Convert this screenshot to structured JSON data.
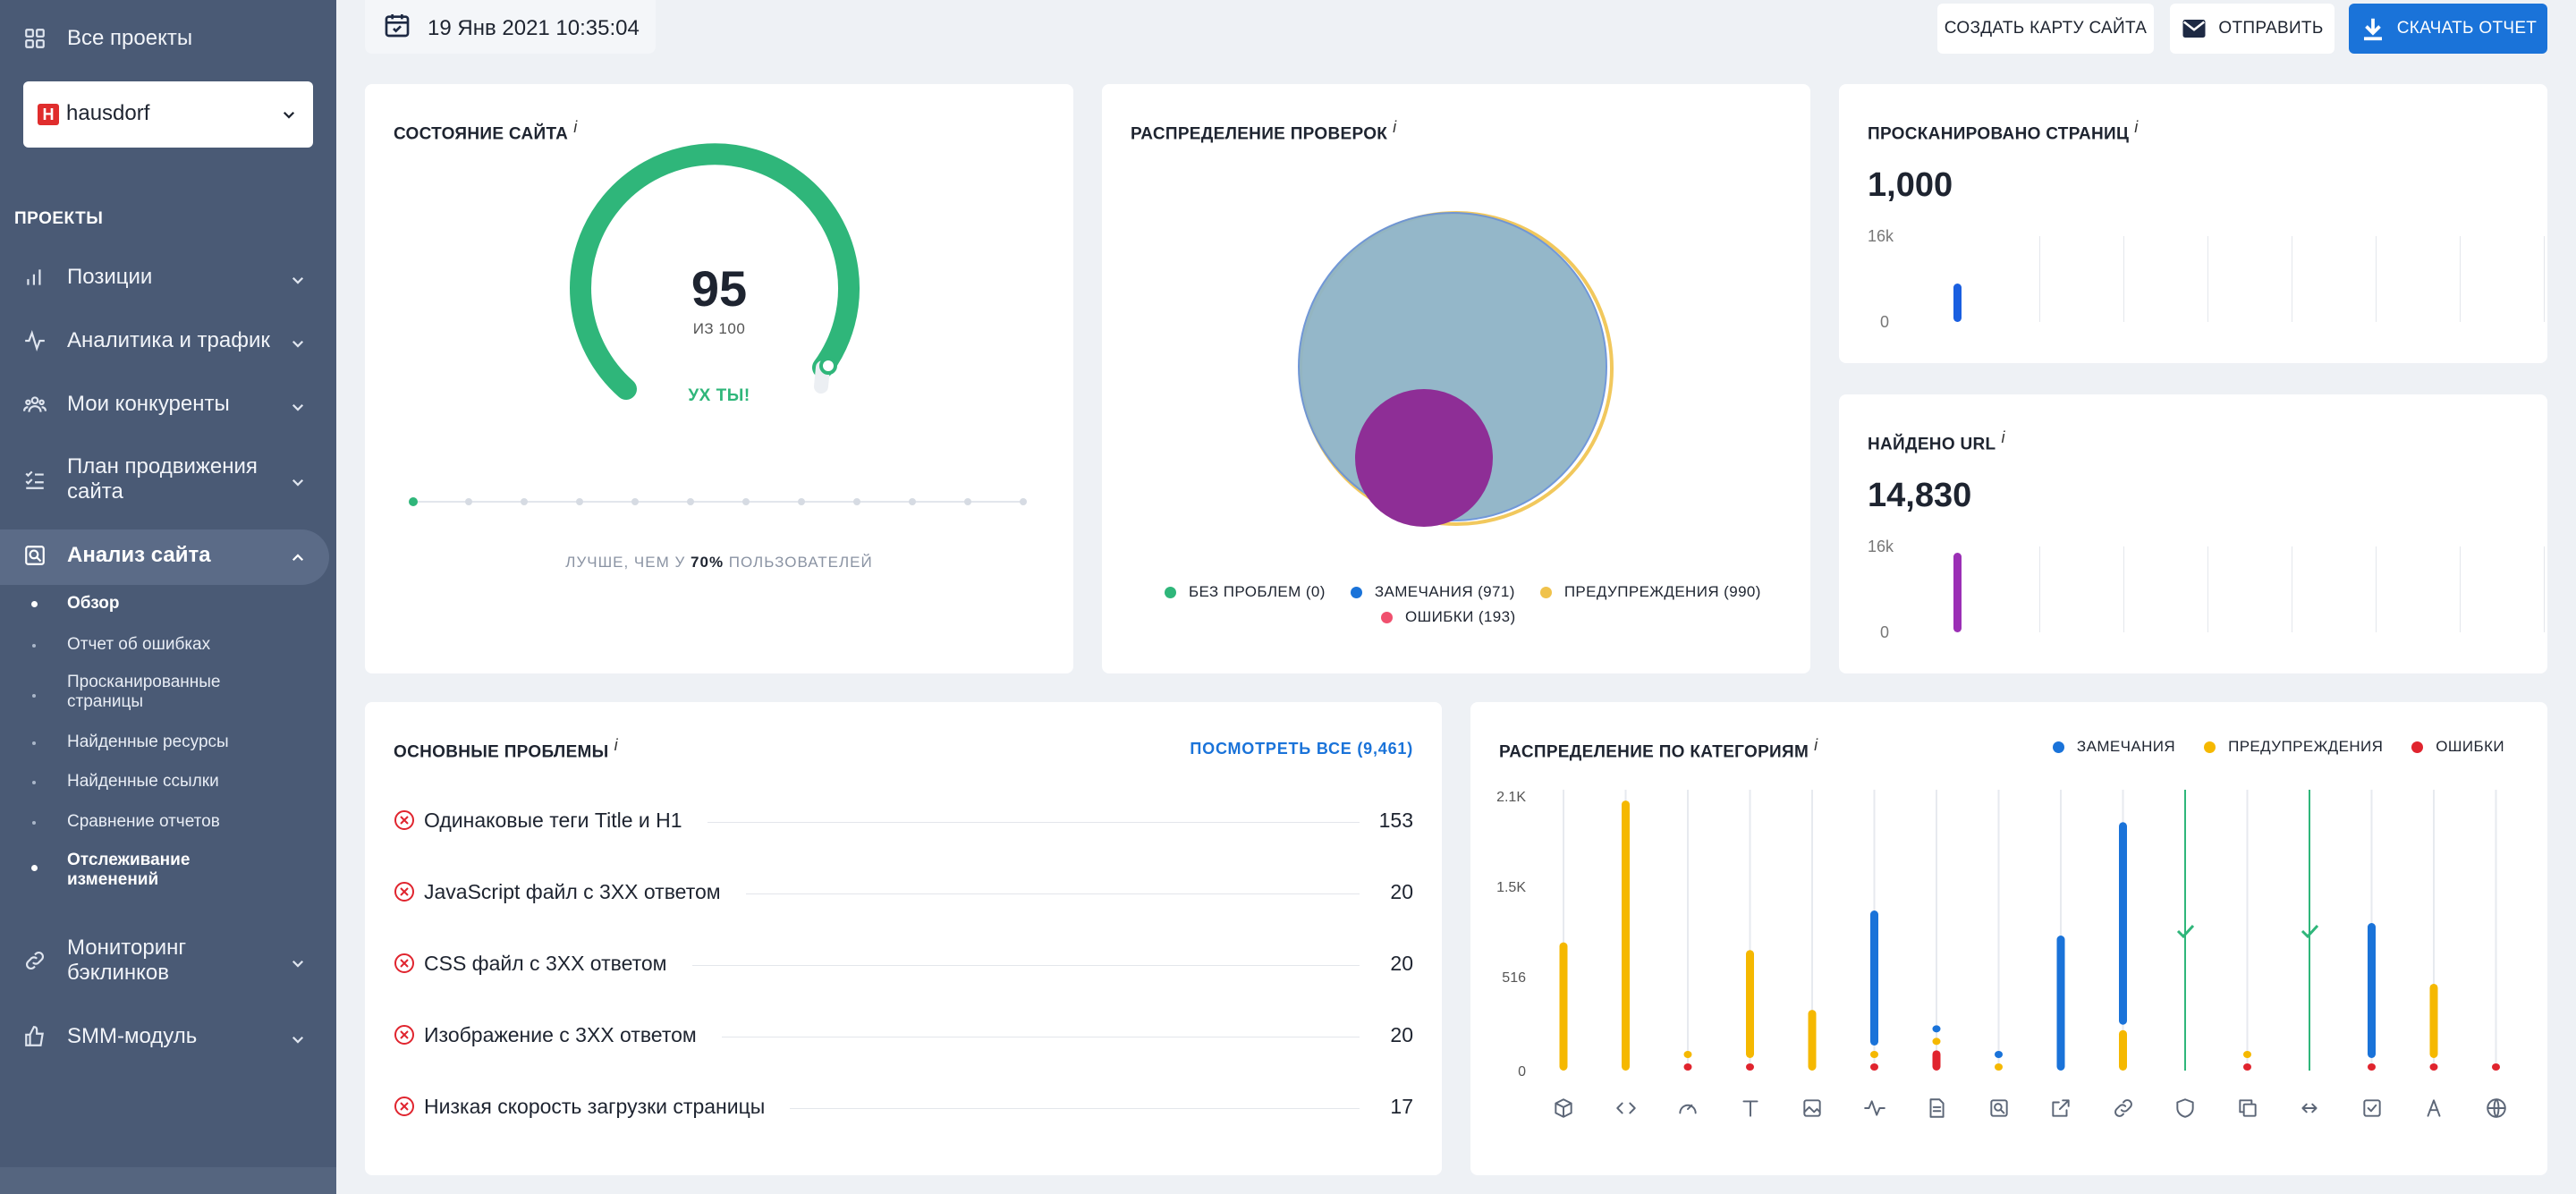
{
  "sidebar": {
    "all_projects": "Все проекты",
    "project": "hausdorf",
    "section_title": "ПРОЕКТЫ",
    "items": [
      {
        "label": "Позиции"
      },
      {
        "label": "Аналитика и трафик"
      },
      {
        "label": "Мои конкуренты"
      },
      {
        "label": "План продвижения сайта"
      },
      {
        "label": "Анализ сайта"
      },
      {
        "label": "Мониторинг бэклинков"
      },
      {
        "label": "SMM-модуль"
      }
    ],
    "subitems": [
      {
        "label": "Обзор"
      },
      {
        "label": "Отчет об ошибках"
      },
      {
        "label": "Просканированные страницы"
      },
      {
        "label": "Найденные ресурсы"
      },
      {
        "label": "Найденные ссылки"
      },
      {
        "label": "Сравнение отчетов"
      },
      {
        "label": "Отслеживание изменений"
      }
    ]
  },
  "header": {
    "date": "19 Янв 2021 10:35:04",
    "btn_sitemap": "СОЗДАТЬ КАРТУ САЙТА",
    "btn_send": "ОТПРАВИТЬ",
    "btn_download": "СКАЧАТЬ ОТЧЕТ"
  },
  "site_health": {
    "title": "СОСТОЯНИЕ САЙТА",
    "info": "i",
    "score": "95",
    "of": "ИЗ 100",
    "verdict": "УХ ТЫ!",
    "score_fraction": 0.95,
    "better_prefix": "ЛУЧШЕ, ЧЕМ У",
    "better_percent": "70%",
    "better_suffix": "ПОЛЬЗОВАТЕЛЕЙ"
  },
  "checks": {
    "title": "РАСПРЕДЕЛЕНИЕ ПРОВЕРОК",
    "info": "i",
    "legend": [
      {
        "label": "БЕЗ ПРОБЛЕМ (0)",
        "color": "#2fb67a"
      },
      {
        "label": "ЗАМЕЧАНИЯ (971)",
        "color": "#1a73d9"
      },
      {
        "label": "ПРЕДУПРЕЖДЕНИЯ (990)",
        "color": "#f0c24b"
      },
      {
        "label": "ОШИБКИ (193)",
        "color": "#f0506e"
      }
    ]
  },
  "pages": {
    "title": "ПРОСКАНИРОВАНО СТРАНИЦ",
    "info": "i",
    "value": "1,000",
    "y_max": "16k",
    "y_min": "0",
    "bar_color": "#1a5fe0",
    "bar_value": 1000
  },
  "urls": {
    "title": "НАЙДЕНО URL",
    "info": "i",
    "value": "14,830",
    "y_max": "16k",
    "y_min": "0",
    "bar_color": "#9b2fb5",
    "bar_value": 14830
  },
  "issues": {
    "title": "ОСНОВНЫЕ ПРОБЛЕМЫ",
    "info": "i",
    "view_all": "ПОСМОТРЕТЬ ВСЕ (9,461)",
    "rows": [
      {
        "text": "Одинаковые теги Title и H1",
        "count": "153"
      },
      {
        "text": "JavaScript файл с 3XX ответом",
        "count": "20"
      },
      {
        "text": "CSS файл с 3XX ответом",
        "count": "20"
      },
      {
        "text": "Изображение с 3XX ответом",
        "count": "20"
      },
      {
        "text": "Низкая скорость загрузки страницы",
        "count": "17"
      }
    ]
  },
  "categories": {
    "title": "РАСПРЕДЕЛЕНИЕ ПО КАТЕГОРИЯМ",
    "info": "i",
    "legend": [
      {
        "label": "ЗАМЕЧАНИЯ",
        "color": "#1a73d9"
      },
      {
        "label": "ПРЕДУПРЕЖДЕНИЯ",
        "color": "#f5b800"
      },
      {
        "label": "ОШИБКИ",
        "color": "#e0242e"
      }
    ],
    "icons": [
      "cube-icon",
      "code-icon",
      "speedometer-icon",
      "text-icon",
      "image-icon",
      "activity-icon",
      "file-icon",
      "search-page-icon",
      "external-link-icon",
      "link-icon",
      "shield-icon",
      "copy-icon",
      "redirect-icon",
      "checkbox-icon",
      "font-icon",
      "globe-icon"
    ]
  },
  "chart_data": {
    "type": "bar",
    "title": "РАСПРЕДЕЛЕНИЕ ПО КАТЕГОРИЯМ",
    "y_ticks": [
      "0",
      "516",
      "1.5K",
      "2.1K"
    ],
    "series": [
      {
        "name": "ЗАМЕЧАНИЯ",
        "values": [
          0,
          0,
          0,
          0,
          0,
          1000,
          20,
          20,
          1000,
          1500,
          0,
          0,
          0,
          1000,
          0,
          0
        ]
      },
      {
        "name": "ПРЕДУПРЕЖДЕНИЯ",
        "values": [
          950,
          2000,
          30,
          800,
          450,
          20,
          20,
          20,
          0,
          300,
          0,
          30,
          0,
          0,
          550,
          0
        ]
      },
      {
        "name": "ОШИБКИ",
        "values": [
          0,
          0,
          20,
          20,
          0,
          20,
          150,
          0,
          0,
          0,
          0,
          20,
          0,
          20,
          20,
          20
        ]
      }
    ],
    "passed": [
      false,
      false,
      false,
      false,
      false,
      false,
      false,
      false,
      false,
      false,
      true,
      false,
      true,
      false,
      false,
      false
    ]
  }
}
